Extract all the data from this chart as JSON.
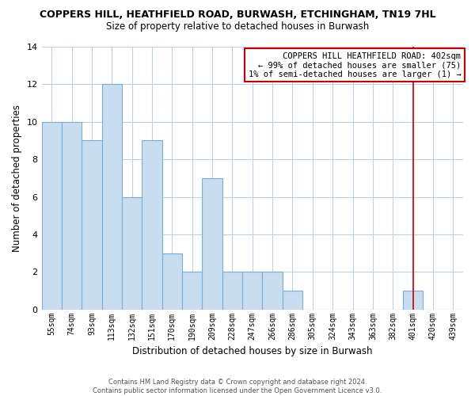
{
  "title1": "COPPERS HILL, HEATHFIELD ROAD, BURWASH, ETCHINGHAM, TN19 7HL",
  "title2": "Size of property relative to detached houses in Burwash",
  "xlabel": "Distribution of detached houses by size in Burwash",
  "ylabel": "Number of detached properties",
  "bar_labels": [
    "55sqm",
    "74sqm",
    "93sqm",
    "113sqm",
    "132sqm",
    "151sqm",
    "170sqm",
    "190sqm",
    "209sqm",
    "228sqm",
    "247sqm",
    "266sqm",
    "286sqm",
    "305sqm",
    "324sqm",
    "343sqm",
    "363sqm",
    "382sqm",
    "401sqm",
    "420sqm",
    "439sqm"
  ],
  "bar_values": [
    10,
    10,
    9,
    12,
    6,
    9,
    3,
    2,
    7,
    2,
    2,
    2,
    1,
    0,
    0,
    0,
    0,
    0,
    1,
    0,
    0
  ],
  "bar_color": "#c8ddf0",
  "bar_edge_color": "#7aadd4",
  "vline_x": 18,
  "vline_color": "#cc0000",
  "ylim": [
    0,
    14
  ],
  "yticks": [
    0,
    2,
    4,
    6,
    8,
    10,
    12,
    14
  ],
  "annotation_title": "COPPERS HILL HEATHFIELD ROAD: 402sqm",
  "annotation_line1": "← 99% of detached houses are smaller (75)",
  "annotation_line2": "1% of semi-detached houses are larger (1) →",
  "annotation_box_color": "#ffffff",
  "annotation_box_edge": "#cc0000",
  "footer1": "Contains HM Land Registry data © Crown copyright and database right 2024.",
  "footer2": "Contains public sector information licensed under the Open Government Licence v3.0.",
  "background_color": "#ffffff",
  "grid_color": "#c0cfe0"
}
